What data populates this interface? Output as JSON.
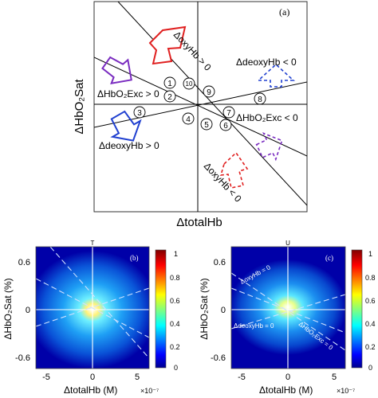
{
  "figure_a": {
    "panel_label": "(a)",
    "xlabel": "ΔtotalHb",
    "ylabel": "ΔHbO₂Sat",
    "region_labels": [
      "ΔoxyHb > 0",
      "ΔdeoxyHb < 0",
      "ΔHbO₂Exc > 0",
      "ΔHbO₂Exc < 0",
      "ΔdeoxyHb > 0",
      "ΔoxyHb < 0"
    ],
    "circled_numbers": [
      "1",
      "2",
      "3",
      "4",
      "5",
      "6",
      "7",
      "8",
      "9",
      "10"
    ],
    "arrow_colors": {
      "red": "#e02020",
      "blue": "#2040d0",
      "purple": "#7a2cc0"
    }
  },
  "panel_b": {
    "tag": "T",
    "panel_label": "(b)",
    "ylabel": "ΔHbO₂Sat (%)",
    "xlabel": "ΔtotalHb (M)",
    "x_scale": "×10⁻⁷",
    "yticks": [
      "0.6",
      "0",
      "-0.6"
    ],
    "xticks": [
      "-5",
      "0",
      "5"
    ],
    "colorbar_ticks": [
      "1",
      "0.8",
      "0.6",
      "0.4",
      "0.2",
      "0"
    ]
  },
  "panel_c": {
    "tag": "U",
    "panel_label": "(c)",
    "ylabel": "ΔHbO₂Sat (%)",
    "xlabel": "ΔtotalHb (M)",
    "x_scale": "×10⁻⁷",
    "yticks": [
      "0.6",
      "0",
      "-0.6"
    ],
    "xticks": [
      "-5",
      "0",
      "5"
    ],
    "colorbar_ticks": [
      "1",
      "0.8",
      "0.6",
      "0.4",
      "0.2",
      "0"
    ],
    "line_labels": [
      "ΔoxyHb = 0",
      "ΔdeoxyHb = 0",
      "ΔHbO₂Exc = 0"
    ]
  },
  "colorbar": {
    "colors": [
      "#00008f",
      "#0000ff",
      "#00ffff",
      "#ffff00",
      "#ff0000",
      "#800000"
    ]
  }
}
